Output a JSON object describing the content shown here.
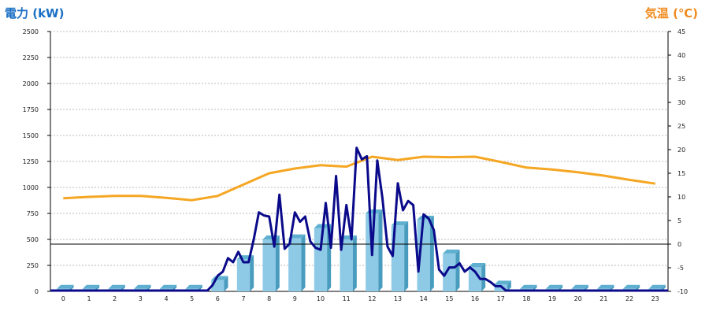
{
  "chart_data": {
    "type": "bar",
    "title": "",
    "xlabel": "",
    "ylabel_left": "電力 (kW)",
    "ylabel_right": "気温 (℃)",
    "left_axis": {
      "min": 0,
      "max": 2500,
      "ticks": [
        0,
        250,
        500,
        750,
        1000,
        1250,
        1500,
        1750,
        2000,
        2250,
        2500
      ]
    },
    "right_axis": {
      "min": -10,
      "max": 45,
      "ticks": [
        -10,
        -5,
        0,
        5,
        10,
        15,
        20,
        25,
        30,
        35,
        40,
        45
      ]
    },
    "categories": [
      "0",
      "1",
      "2",
      "3",
      "4",
      "5",
      "6",
      "7",
      "8",
      "9",
      "10",
      "11",
      "12",
      "13",
      "14",
      "15",
      "16",
      "17",
      "18",
      "19",
      "20",
      "21",
      "22",
      "23"
    ],
    "series": [
      {
        "type": "bar",
        "axis": "left",
        "values": [
          25,
          25,
          25,
          25,
          25,
          25,
          110,
          310,
          500,
          510,
          610,
          500,
          750,
          635,
          690,
          365,
          235,
          65,
          25,
          25,
          25,
          25,
          25,
          25
        ],
        "color": "#8ecae6"
      },
      {
        "type": "line",
        "axis": "left",
        "color": "#0a0a8a",
        "x": [
          0,
          5.6,
          5.8,
          6.0,
          6.2,
          6.4,
          6.6,
          6.8,
          7.0,
          7.2,
          7.4,
          7.6,
          7.8,
          8.0,
          8.2,
          8.4,
          8.6,
          8.8,
          9.0,
          9.2,
          9.4,
          9.6,
          9.8,
          10.0,
          10.2,
          10.4,
          10.6,
          10.8,
          11.0,
          11.2,
          11.4,
          11.6,
          11.8,
          12.0,
          12.2,
          12.4,
          12.6,
          12.8,
          13.0,
          13.2,
          13.4,
          13.6,
          13.8,
          14.0,
          14.2,
          14.4,
          14.6,
          14.8,
          15.0,
          15.2,
          15.4,
          15.6,
          15.8,
          16.0,
          16.2,
          16.4,
          16.6,
          16.8,
          17.0,
          17.2,
          23
        ],
        "y": [
          0,
          0,
          60,
          150,
          190,
          320,
          280,
          380,
          280,
          280,
          500,
          760,
          730,
          720,
          430,
          930,
          410,
          460,
          760,
          670,
          720,
          480,
          420,
          400,
          850,
          420,
          1110,
          400,
          830,
          500,
          1380,
          1270,
          1300,
          350,
          1260,
          900,
          430,
          340,
          1040,
          780,
          870,
          830,
          190,
          740,
          700,
          590,
          210,
          150,
          230,
          230,
          270,
          190,
          230,
          190,
          120,
          120,
          90,
          50,
          50,
          0,
          0
        ]
      },
      {
        "type": "line",
        "axis": "right",
        "color": "#f5a623",
        "values": [
          9.7,
          10.0,
          10.2,
          10.2,
          9.8,
          9.3,
          10.2,
          12.6,
          15.0,
          16.0,
          16.7,
          16.4,
          18.5,
          17.8,
          18.5,
          18.4,
          18.5,
          17.4,
          16.2,
          15.8,
          15.2,
          14.5,
          13.6,
          12.8
        ]
      }
    ],
    "reference_line": {
      "axis": "right",
      "value": 0
    },
    "grid": true
  }
}
